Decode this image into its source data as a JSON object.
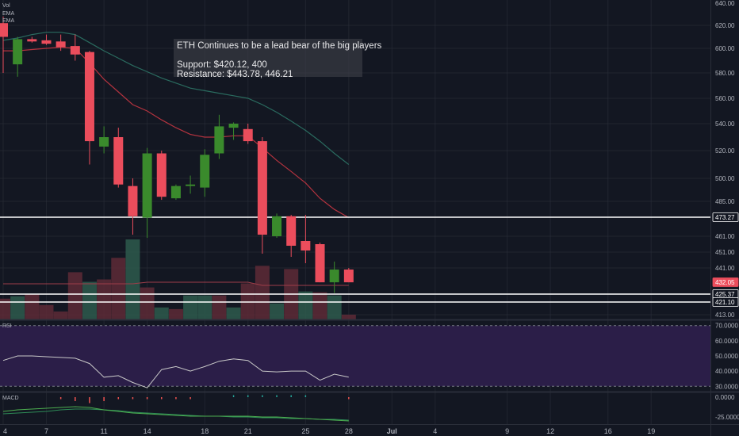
{
  "annotation": {
    "title": "ETH Continues to be a lead bear of the big players",
    "support": "Support: $420.12, 400",
    "resistance": "Resistance: $443.78, 446.21"
  },
  "indicators": {
    "vol": "Vol",
    "ema1": "EMA",
    "ema2": "EMA",
    "rsi": "RSI",
    "macd": "MACD"
  },
  "colors": {
    "bg": "#131722",
    "up": "#53b987",
    "up_body": "#3a8a2c",
    "down": "#eb4d5c",
    "grid": "#2a2e39",
    "ema_fast": "#b4333f",
    "ema_slow": "#2a6b5f",
    "rsi": "#c8c8c8",
    "rsi_band": "#2b1e48",
    "hline": "#ffffff",
    "text": "#b2b5be"
  },
  "chart_data": {
    "type": "candlestick",
    "x_ticks": [
      "4",
      "7",
      "11",
      "14",
      "18",
      "21",
      "25",
      "28",
      "Jul",
      "4",
      "9",
      "12",
      "16",
      "19"
    ],
    "y_ticks": [
      "640.00",
      "620.00",
      "600.00",
      "580.00",
      "560.00",
      "540.00",
      "520.00",
      "500.00",
      "485.00",
      "473.27",
      "461.00",
      "451.00",
      "441.00",
      "432.05",
      "425.37",
      "421.10",
      "413.00"
    ],
    "price_badges": [
      {
        "label": "473.27",
        "value": 473.27
      },
      {
        "label": "432.05",
        "value": 432.05
      },
      {
        "label": "425.37",
        "value": 425.37
      },
      {
        "label": "421.10",
        "value": 421.1
      }
    ],
    "horizontal_lines": [
      473.27,
      425.37,
      421.1
    ],
    "candles": [
      {
        "date": "Jun 3",
        "open": 622,
        "high": 628,
        "low": 580,
        "close": 610
      },
      {
        "date": "Jun 4",
        "open": 587,
        "high": 610,
        "low": 577,
        "close": 608
      },
      {
        "date": "Jun 5",
        "open": 608,
        "high": 610,
        "low": 605,
        "close": 606
      },
      {
        "date": "Jun 6",
        "open": 607,
        "high": 612,
        "low": 603,
        "close": 604
      },
      {
        "date": "Jun 7",
        "open": 606,
        "high": 612,
        "low": 598,
        "close": 601
      },
      {
        "date": "Jun 8",
        "open": 602,
        "high": 612,
        "low": 590,
        "close": 595
      },
      {
        "date": "Jun 10",
        "open": 597,
        "high": 598,
        "low": 510,
        "close": 527
      },
      {
        "date": "Jun 11",
        "open": 523,
        "high": 538,
        "low": 518,
        "close": 530
      },
      {
        "date": "Jun 12",
        "open": 530,
        "high": 537,
        "low": 494,
        "close": 496
      },
      {
        "date": "Jun 13",
        "open": 495,
        "high": 500,
        "low": 462,
        "close": 474
      },
      {
        "date": "Jun 14",
        "open": 473,
        "high": 522,
        "low": 460,
        "close": 518
      },
      {
        "date": "Jun 15",
        "open": 518,
        "high": 520,
        "low": 486,
        "close": 488
      },
      {
        "date": "Jun 16",
        "open": 487,
        "high": 496,
        "low": 486,
        "close": 495
      },
      {
        "date": "Jun 17",
        "open": 495,
        "high": 502,
        "low": 490,
        "close": 496
      },
      {
        "date": "Jun 18",
        "open": 494,
        "high": 521,
        "low": 488,
        "close": 517
      },
      {
        "date": "Jun 19",
        "open": 518,
        "high": 547,
        "low": 514,
        "close": 538
      },
      {
        "date": "Jun 20",
        "open": 537,
        "high": 541,
        "low": 528,
        "close": 540
      },
      {
        "date": "Jun 21",
        "open": 536,
        "high": 540,
        "low": 525,
        "close": 527
      },
      {
        "date": "Jun 22",
        "open": 527,
        "high": 530,
        "low": 450,
        "close": 462
      },
      {
        "date": "Jun 23",
        "open": 461,
        "high": 476,
        "low": 460,
        "close": 474
      },
      {
        "date": "Jun 24",
        "open": 474,
        "high": 475,
        "low": 448,
        "close": 455
      },
      {
        "date": "Jun 25",
        "open": 458,
        "high": 475,
        "low": 444,
        "close": 452
      },
      {
        "date": "Jun 26",
        "open": 456,
        "high": 457,
        "low": 432,
        "close": 432
      },
      {
        "date": "Jun 27",
        "open": 432,
        "high": 445,
        "low": 426,
        "close": 440
      },
      {
        "date": "Jun 28",
        "open": 440,
        "high": 441,
        "low": 432,
        "close": 432
      }
    ],
    "ema_fast": [
      598,
      598,
      599,
      600,
      601,
      600,
      588,
      575,
      565,
      555,
      550,
      543,
      537,
      532,
      530,
      530,
      531,
      531,
      522,
      513,
      505,
      497,
      487,
      479,
      473
    ],
    "ema_slow": [
      607,
      609,
      612,
      614,
      614,
      612,
      605,
      598,
      592,
      586,
      581,
      576,
      572,
      568,
      566,
      564,
      562,
      560,
      555,
      549,
      542,
      535,
      527,
      518,
      510
    ],
    "volume": [
      {
        "v": 0.26,
        "dir": "down"
      },
      {
        "v": 0.29,
        "dir": "up"
      },
      {
        "v": 0.32,
        "dir": "down"
      },
      {
        "v": 0.18,
        "dir": "down"
      },
      {
        "v": 0.1,
        "dir": "down"
      },
      {
        "v": 0.59,
        "dir": "down"
      },
      {
        "v": 0.47,
        "dir": "up"
      },
      {
        "v": 0.5,
        "dir": "down"
      },
      {
        "v": 0.77,
        "dir": "down"
      },
      {
        "v": 1.0,
        "dir": "up"
      },
      {
        "v": 0.4,
        "dir": "down"
      },
      {
        "v": 0.15,
        "dir": "up"
      },
      {
        "v": 0.13,
        "dir": "down"
      },
      {
        "v": 0.3,
        "dir": "up"
      },
      {
        "v": 0.3,
        "dir": "up"
      },
      {
        "v": 0.3,
        "dir": "down"
      },
      {
        "v": 0.15,
        "dir": "up"
      },
      {
        "v": 0.45,
        "dir": "down"
      },
      {
        "v": 0.67,
        "dir": "down"
      },
      {
        "v": 0.2,
        "dir": "up"
      },
      {
        "v": 0.63,
        "dir": "down"
      },
      {
        "v": 0.35,
        "dir": "up"
      },
      {
        "v": 0.34,
        "dir": "down"
      },
      {
        "v": 0.3,
        "dir": "up"
      },
      {
        "v": 0.06,
        "dir": "down"
      }
    ],
    "rsi": {
      "ticks": [
        "70.0000",
        "60.0000",
        "50.0000",
        "40.0000",
        "30.0000"
      ],
      "band": [
        30,
        70
      ],
      "ylim": [
        27,
        73
      ],
      "values": [
        47,
        50,
        50,
        49.5,
        49,
        48.5,
        45,
        36,
        37,
        32.5,
        29,
        41,
        43,
        40,
        43,
        46.5,
        48,
        47,
        40,
        39.5,
        40,
        40,
        34,
        38,
        36
      ]
    },
    "macd": {
      "ticks": [
        "0.0000",
        "-25.0000"
      ],
      "ylim": [
        -33,
        5
      ],
      "macd_line": [
        -18,
        -16,
        -15,
        -14,
        -13,
        -12,
        -13,
        -16,
        -18,
        -20,
        -21,
        -22,
        -23,
        -24,
        -24,
        -24,
        -24,
        -24,
        -25,
        -25,
        -26,
        -27,
        -28,
        -29,
        -30
      ],
      "signal_line": [
        -21,
        -20,
        -19,
        -18,
        -16,
        -15,
        -15,
        -16,
        -17,
        -19,
        -20,
        -21,
        -22,
        -23,
        -24,
        -24,
        -25,
        -25,
        -26,
        -26,
        -27,
        -27,
        -28,
        -28,
        -29
      ],
      "histogram": [
        0,
        0,
        0,
        0,
        -1,
        -2,
        -3,
        -2,
        -1,
        -1,
        -1,
        -1,
        -1,
        -1,
        0,
        0,
        1,
        1,
        1,
        1,
        1,
        1,
        0,
        0,
        -1
      ]
    }
  }
}
